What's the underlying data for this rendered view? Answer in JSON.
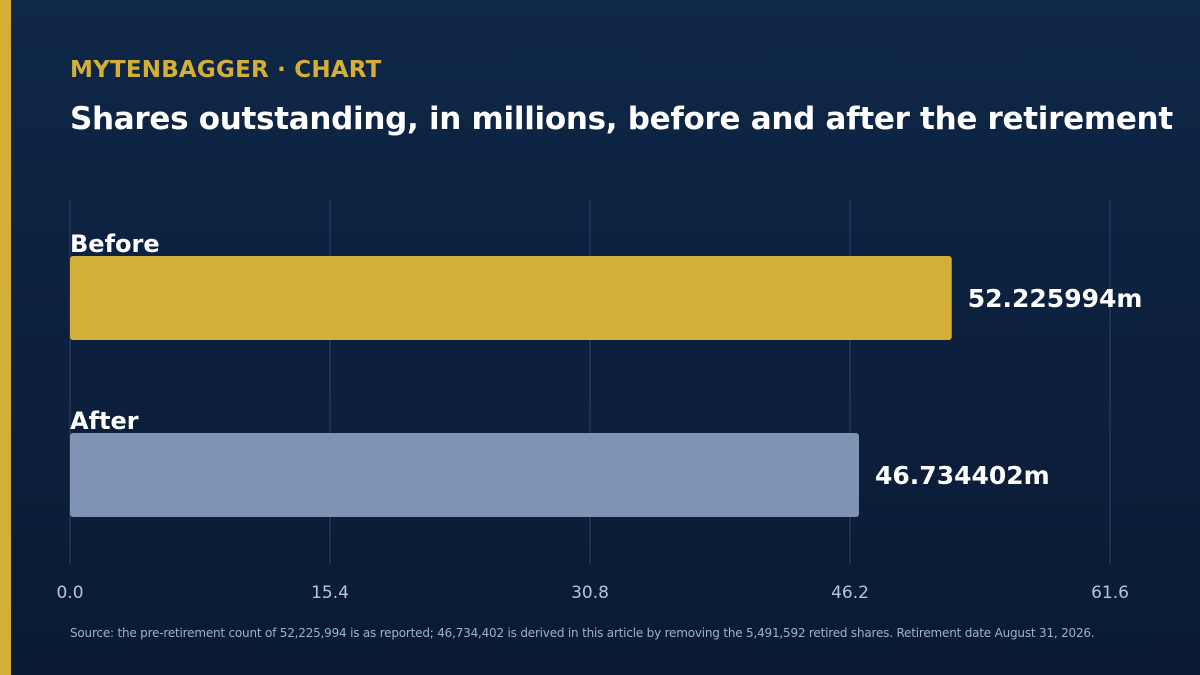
{
  "brand": "MYTENBAGGER · CHART",
  "colors": {
    "background_top": "#0f2748",
    "background_bottom": "#0a1a33",
    "accent": "#d4af37",
    "before_bar": "#d4af37",
    "after_bar": "#7f93b5",
    "grid": "#2e4668",
    "tick": "#b8c4d6",
    "source_text": "#9fb0c8"
  },
  "chart_data": {
    "type": "bar",
    "orientation": "horizontal",
    "title": "Shares outstanding, in millions, before and after the retirement",
    "categories": [
      "Before",
      "After"
    ],
    "values": [
      52.225994,
      46.734402
    ],
    "value_labels": [
      "52.225994m",
      "46.734402m"
    ],
    "bar_colors": [
      "#d4af37",
      "#7f93b5"
    ],
    "xlim": [
      0,
      61.6
    ],
    "xticks": [
      "0.0",
      "15.4",
      "30.8",
      "46.2",
      "61.6"
    ],
    "grid": true,
    "xlabel": "",
    "ylabel": ""
  },
  "source_note": "Source: the pre-retirement count of 52,225,994 is as reported; 46,734,402 is derived in this article by removing the 5,491,592 retired shares. Retirement date August 31, 2026."
}
